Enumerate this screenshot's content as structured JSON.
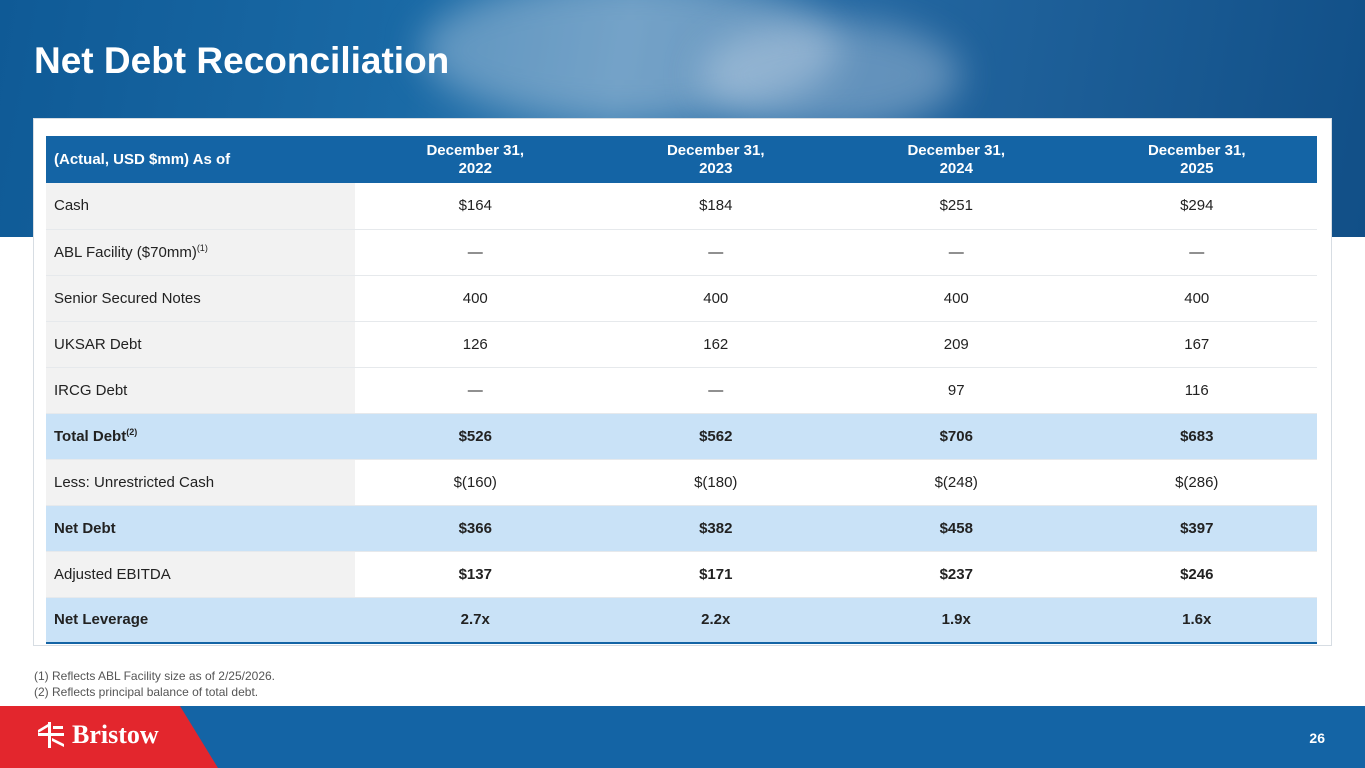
{
  "title": "Net Debt Reconciliation",
  "table": {
    "headers": [
      "(Actual, USD $mm) As of",
      "December 31,\n2022",
      "December 31,\n2023",
      "December 31,\n2024",
      "December 31,\n2025"
    ],
    "rows": [
      {
        "label": "Cash",
        "sup": "",
        "values": [
          "$164",
          "$184",
          "$251",
          "$294"
        ]
      },
      {
        "label": "ABL Facility ($70mm)",
        "sup": "(1)",
        "values": [
          "—",
          "—",
          "—",
          "—"
        ]
      },
      {
        "label": "Senior Secured Notes",
        "sup": "",
        "values": [
          "400",
          "400",
          "400",
          "400"
        ]
      },
      {
        "label": "UKSAR Debt",
        "sup": "",
        "values": [
          "126",
          "162",
          "209",
          "167"
        ]
      },
      {
        "label": "IRCG Debt",
        "sup": "",
        "values": [
          "—",
          "—",
          "97",
          "116"
        ]
      },
      {
        "label": "Total Debt",
        "sup": "(2)",
        "values": [
          "$526",
          "$562",
          "$706",
          "$683"
        ]
      },
      {
        "label": "Less: Unrestricted Cash",
        "sup": "",
        "values": [
          "$(160)",
          "$(180)",
          "$(248)",
          "$(286)"
        ]
      },
      {
        "label": "Net Debt",
        "sup": "",
        "values": [
          "$366",
          "$382",
          "$458",
          "$397"
        ]
      },
      {
        "label": "Adjusted EBITDA",
        "sup": "",
        "values": [
          "$137",
          "$171",
          "$237",
          "$246"
        ]
      },
      {
        "label": "Net Leverage",
        "sup": "",
        "values": [
          "2.7x",
          "2.2x",
          "1.9x",
          "1.6x"
        ]
      }
    ]
  },
  "notes": [
    "(1) Reflects ABL Facility size as of 2/25/2026.",
    "(2) Reflects principal balance of total debt."
  ],
  "logo": "Bristow",
  "page_number": "26"
}
